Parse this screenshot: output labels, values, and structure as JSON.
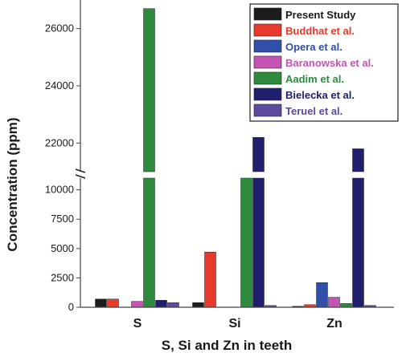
{
  "chart_data": {
    "type": "bar",
    "title": "",
    "xlabel": "S, Si and Zn in teeth",
    "ylabel": "Concentration (ppm)",
    "categories": [
      "S",
      "Si",
      "Zn"
    ],
    "axis_break": {
      "lower_range": [
        0,
        11000
      ],
      "upper_range": [
        21000,
        27000
      ]
    },
    "ticks_lower": [
      "0",
      "2500",
      "5000",
      "7500",
      "10000"
    ],
    "ticks_upper": [
      "22000",
      "24000",
      "26000"
    ],
    "legend_position": "top-right",
    "series": [
      {
        "name": "Present Study",
        "color": "#1c1c1c",
        "values": [
          700,
          400,
          80
        ]
      },
      {
        "name": "Buddhat et al.",
        "color": "#e8392b",
        "values": [
          700,
          4700,
          220
        ]
      },
      {
        "name": "Opera et al.",
        "color": "#2f4fa8",
        "values": [
          0,
          0,
          2100
        ]
      },
      {
        "name": "Baranowska et al.",
        "color": "#c455b5",
        "values": [
          500,
          0,
          850
        ]
      },
      {
        "name": "Aadim et al.",
        "color": "#2e8b3e",
        "values": [
          26700,
          11400,
          320
        ]
      },
      {
        "name": "Bielecka et al.",
        "color": "#1f1f6e",
        "values": [
          600,
          22200,
          21800
        ]
      },
      {
        "name": "Teruel et al.",
        "color": "#5b4a9e",
        "values": [
          400,
          150,
          150
        ]
      }
    ]
  }
}
